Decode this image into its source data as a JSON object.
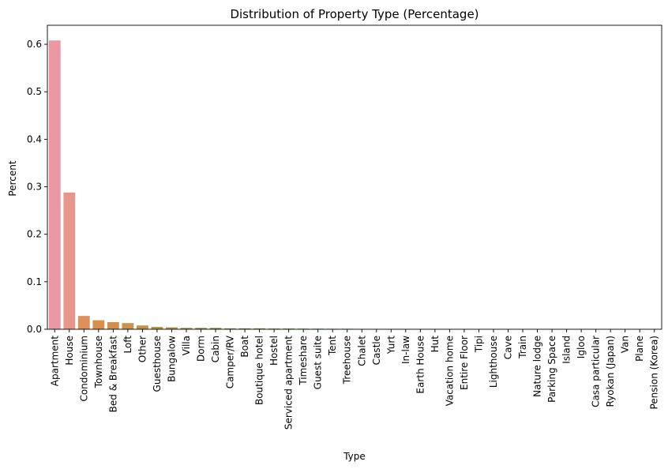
{
  "chart_data": {
    "type": "bar",
    "title": "Distribution of Property Type (Percentage)",
    "xlabel": "Type",
    "ylabel": "Percent",
    "ylim": [
      0,
      0.64
    ],
    "yticks": [
      0.0,
      0.1,
      0.2,
      0.3,
      0.4,
      0.5,
      0.6
    ],
    "ytick_labels": [
      "0.0",
      "0.1",
      "0.2",
      "0.3",
      "0.4",
      "0.5",
      "0.6"
    ],
    "grid": false,
    "legend": "none",
    "categories": [
      "Apartment",
      "House",
      "Condominium",
      "Townhouse",
      "Bed & Breakfast",
      "Loft",
      "Other",
      "Guesthouse",
      "Bungalow",
      "Villa",
      "Dorm",
      "Cabin",
      "Camper/RV",
      "Boat",
      "Boutique hotel",
      "Hostel",
      "Serviced apartment",
      "Timeshare",
      "Guest suite",
      "Tent",
      "Treehouse",
      "Chalet",
      "Castle",
      "Yurt",
      "In-law",
      "Earth House",
      "Hut",
      "Vacation home",
      "Entire Floor",
      "Tipi",
      "Lighthouse",
      "Cave",
      "Train",
      "Nature lodge",
      "Parking Space",
      "Island",
      "Igloo",
      "Casa particular",
      "Ryokan (Japan)",
      "Van",
      "Plane",
      "Pension (Korea)"
    ],
    "values": [
      0.608,
      0.288,
      0.028,
      0.019,
      0.015,
      0.013,
      0.008,
      0.005,
      0.004,
      0.003,
      0.003,
      0.003,
      0.002,
      0.002,
      0.002,
      0.0015,
      0.0015,
      0.0013,
      0.0012,
      0.001,
      0.001,
      0.0005,
      0.0005,
      0.0004,
      0.0004,
      0.0003,
      0.0003,
      0.0003,
      0.0003,
      0.0002,
      0.0002,
      0.0002,
      0.0002,
      0.0002,
      0.0002,
      0.0001,
      0.0001,
      0.0001,
      0.0001,
      0.0001,
      0.0001,
      0.0001
    ],
    "colors": [
      "#ea96a3",
      "#e8968b",
      "#de905b",
      "#d98f4b",
      "#d38f4a",
      "#cc914a",
      "#c4924a",
      "#bc944a",
      "#b3964a",
      "#ac9849",
      "#a49a49",
      "#9c9c49",
      "#949e49",
      "#8ca149",
      "#83a349",
      "#7aa54a",
      "#6ea74c",
      "#60a84f",
      "#51aa52",
      "#49a957",
      "#49a95e",
      "#49a865",
      "#4aa76c",
      "#4aa772",
      "#4ba777",
      "#4ba67c",
      "#4ca681",
      "#4ca585",
      "#4da58a",
      "#4ea48f",
      "#4fa494",
      "#51a399",
      "#52a39f",
      "#53a2a5",
      "#55a1ac",
      "#56a0b3",
      "#589fbc",
      "#5a9ec5",
      "#5d9dd0",
      "#7d98e0",
      "#9890e8",
      "#b185ea"
    ]
  }
}
